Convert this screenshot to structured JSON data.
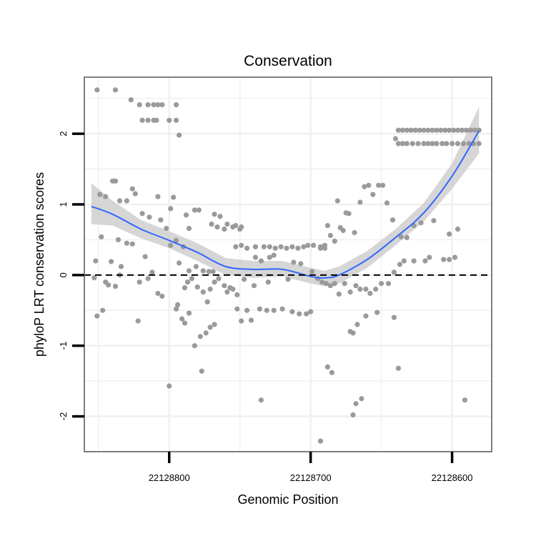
{
  "colors": {
    "background": "#ffffff",
    "plot_border": "#7f7f7f",
    "grid": "#f0f0f0",
    "points": "#9a9a9a",
    "smooth_line": "#3366ff",
    "confidence_band": "#cccccc",
    "reference_line": "#000000"
  },
  "chart_data": {
    "type": "scatter",
    "title": "Conservation",
    "xlabel": "Genomic Position",
    "ylabel": "phyloP LRT conservation scores",
    "x_reversed": true,
    "xlim": [
      22128860,
      22128572
    ],
    "ylim": [
      -2.5,
      2.8
    ],
    "x_ticks": [
      22128800,
      22128700,
      22128600
    ],
    "x_tick_labels": [
      "22128800",
      "22128700",
      "22128600"
    ],
    "y_ticks": [
      -2,
      -1,
      0,
      1,
      2
    ],
    "y_tick_labels": [
      "-2",
      "-1",
      "0",
      "1",
      "2"
    ],
    "grid": true,
    "reference_line": {
      "y": 0,
      "style": "dashed"
    },
    "points": [
      [
        22128851,
        2.62
      ],
      [
        22128838,
        2.62
      ],
      [
        22128827,
        2.48
      ],
      [
        22128821,
        2.41
      ],
      [
        22128815,
        2.41
      ],
      [
        22128811,
        2.41
      ],
      [
        22128808,
        2.41
      ],
      [
        22128805,
        2.41
      ],
      [
        22128795,
        2.41
      ],
      [
        22128819,
        2.19
      ],
      [
        22128815,
        2.19
      ],
      [
        22128811,
        2.19
      ],
      [
        22128809,
        2.19
      ],
      [
        22128800,
        2.19
      ],
      [
        22128795,
        2.19
      ],
      [
        22128793,
        1.98
      ],
      [
        22128840,
        1.33
      ],
      [
        22128838,
        1.33
      ],
      [
        22128849,
        1.14
      ],
      [
        22128845,
        1.11
      ],
      [
        22128835,
        1.05
      ],
      [
        22128830,
        1.05
      ],
      [
        22128826,
        1.22
      ],
      [
        22128824,
        1.15
      ],
      [
        22128808,
        1.11
      ],
      [
        22128799,
        0.94
      ],
      [
        22128797,
        1.1
      ],
      [
        22128788,
        0.85
      ],
      [
        22128782,
        0.92
      ],
      [
        22128779,
        0.92
      ],
      [
        22128768,
        0.86
      ],
      [
        22128764,
        0.83
      ],
      [
        22128770,
        0.72
      ],
      [
        22128766,
        0.68
      ],
      [
        22128761,
        0.65
      ],
      [
        22128759,
        0.72
      ],
      [
        22128755,
        0.68
      ],
      [
        22128753,
        0.7
      ],
      [
        22128750,
        0.65
      ],
      [
        22128749,
        0.68
      ],
      [
        22128819,
        0.87
      ],
      [
        22128814,
        0.82
      ],
      [
        22128806,
        0.78
      ],
      [
        22128802,
        0.66
      ],
      [
        22128786,
        0.66
      ],
      [
        22128848,
        0.54
      ],
      [
        22128836,
        0.5
      ],
      [
        22128830,
        0.45
      ],
      [
        22128826,
        0.44
      ],
      [
        22128799,
        0.42
      ],
      [
        22128795,
        0.49
      ],
      [
        22128790,
        0.4
      ],
      [
        22128852,
        0.2
      ],
      [
        22128841,
        0.19
      ],
      [
        22128834,
        0.12
      ],
      [
        22128817,
        0.26
      ],
      [
        22128812,
        0.04
      ],
      [
        22128793,
        0.17
      ],
      [
        22128786,
        0.06
      ],
      [
        22128781,
        0.12
      ],
      [
        22128776,
        0.06
      ],
      [
        22128772,
        0.05
      ],
      [
        22128769,
        0.05
      ],
      [
        22128853,
        -0.04
      ],
      [
        22128845,
        -0.1
      ],
      [
        22128843,
        -0.14
      ],
      [
        22128838,
        -0.16
      ],
      [
        22128835,
        0.0
      ],
      [
        22128821,
        -0.1
      ],
      [
        22128815,
        -0.05
      ],
      [
        22128808,
        -0.26
      ],
      [
        22128805,
        -0.3
      ],
      [
        22128794,
        -0.42
      ],
      [
        22128789,
        -0.18
      ],
      [
        22128787,
        -0.1
      ],
      [
        22128784,
        -0.05
      ],
      [
        22128780,
        -0.17
      ],
      [
        22128776,
        -0.24
      ],
      [
        22128773,
        -0.38
      ],
      [
        22128771,
        -0.2
      ],
      [
        22128768,
        -0.1
      ],
      [
        22128765,
        -0.05
      ],
      [
        22128761,
        -0.15
      ],
      [
        22128759,
        -0.24
      ],
      [
        22128757,
        -0.18
      ],
      [
        22128755,
        -0.2
      ],
      [
        22128752,
        -0.28
      ],
      [
        22128851,
        -0.58
      ],
      [
        22128847,
        -0.5
      ],
      [
        22128822,
        -0.65
      ],
      [
        22128795,
        -0.48
      ],
      [
        22128791,
        -0.62
      ],
      [
        22128789,
        -0.68
      ],
      [
        22128786,
        -0.54
      ],
      [
        22128782,
        -1.0
      ],
      [
        22128778,
        -0.87
      ],
      [
        22128774,
        -0.82
      ],
      [
        22128771,
        -0.74
      ],
      [
        22128768,
        -0.7
      ],
      [
        22128777,
        -1.36
      ],
      [
        22128800,
        -1.57
      ],
      [
        22128753,
        0.4
      ],
      [
        22128749,
        0.42
      ],
      [
        22128745,
        0.38
      ],
      [
        22128739,
        0.4
      ],
      [
        22128733,
        0.4
      ],
      [
        22128729,
        0.4
      ],
      [
        22128725,
        0.38
      ],
      [
        22128721,
        0.4
      ],
      [
        22128717,
        0.38
      ],
      [
        22128713,
        0.4
      ],
      [
        22128709,
        0.38
      ],
      [
        22128705,
        0.4
      ],
      [
        22128702,
        0.42
      ],
      [
        22128698,
        0.42
      ],
      [
        22128693,
        0.38
      ],
      [
        22128690,
        0.42
      ],
      [
        22128739,
        0.25
      ],
      [
        22128735,
        0.2
      ],
      [
        22128729,
        0.25
      ],
      [
        22128726,
        0.28
      ],
      [
        22128712,
        0.18
      ],
      [
        22128707,
        0.16
      ],
      [
        22128699,
        0.05
      ],
      [
        22128747,
        -0.06
      ],
      [
        22128740,
        -0.15
      ],
      [
        22128730,
        -0.1
      ],
      [
        22128716,
        -0.06
      ],
      [
        22128695,
        -0.05
      ],
      [
        22128752,
        -0.48
      ],
      [
        22128749,
        -0.65
      ],
      [
        22128745,
        -0.5
      ],
      [
        22128742,
        -0.64
      ],
      [
        22128736,
        -0.48
      ],
      [
        22128731,
        -0.5
      ],
      [
        22128726,
        -0.5
      ],
      [
        22128720,
        -0.48
      ],
      [
        22128713,
        -0.52
      ],
      [
        22128708,
        -0.55
      ],
      [
        22128703,
        -0.55
      ],
      [
        22128700,
        -0.52
      ],
      [
        22128735,
        -1.77
      ],
      [
        22128690,
        0.38
      ],
      [
        22128688,
        0.7
      ],
      [
        22128686,
        0.56
      ],
      [
        22128683,
        0.48
      ],
      [
        22128681,
        1.05
      ],
      [
        22128679,
        0.67
      ],
      [
        22128677,
        0.63
      ],
      [
        22128675,
        0.88
      ],
      [
        22128673,
        0.87
      ],
      [
        22128669,
        0.6
      ],
      [
        22128665,
        1.03
      ],
      [
        22128662,
        1.25
      ],
      [
        22128659,
        1.27
      ],
      [
        22128656,
        1.14
      ],
      [
        22128652,
        1.27
      ],
      [
        22128649,
        1.27
      ],
      [
        22128646,
        1.02
      ],
      [
        22128642,
        0.78
      ],
      [
        22128636,
        0.54
      ],
      [
        22128632,
        0.53
      ],
      [
        22128627,
        0.7
      ],
      [
        22128622,
        0.74
      ],
      [
        22128613,
        0.77
      ],
      [
        22128602,
        0.58
      ],
      [
        22128596,
        0.65
      ],
      [
        22128689,
        -0.12
      ],
      [
        22128686,
        -0.15
      ],
      [
        22128683,
        -0.12
      ],
      [
        22128680,
        -0.27
      ],
      [
        22128676,
        -0.12
      ],
      [
        22128672,
        -0.24
      ],
      [
        22128668,
        -0.15
      ],
      [
        22128665,
        -0.2
      ],
      [
        22128661,
        -0.2
      ],
      [
        22128658,
        -0.26
      ],
      [
        22128654,
        -0.2
      ],
      [
        22128650,
        -0.12
      ],
      [
        22128645,
        -0.12
      ],
      [
        22128641,
        0.04
      ],
      [
        22128637,
        0.15
      ],
      [
        22128634,
        0.2
      ],
      [
        22128627,
        0.2
      ],
      [
        22128619,
        0.2
      ],
      [
        22128616,
        0.25
      ],
      [
        22128606,
        0.22
      ],
      [
        22128602,
        0.22
      ],
      [
        22128598,
        0.25
      ],
      [
        22128672,
        -0.8
      ],
      [
        22128670,
        -0.82
      ],
      [
        22128667,
        -0.7
      ],
      [
        22128661,
        -0.58
      ],
      [
        22128653,
        -0.53
      ],
      [
        22128641,
        -0.6
      ],
      [
        22128688,
        -1.3
      ],
      [
        22128685,
        -1.38
      ],
      [
        22128670,
        -1.98
      ],
      [
        22128668,
        -1.82
      ],
      [
        22128664,
        -1.75
      ],
      [
        22128638,
        -1.32
      ],
      [
        22128591,
        -1.77
      ],
      [
        22128693,
        -2.35
      ],
      [
        22128693,
        0.4
      ],
      [
        22128692,
        -0.1
      ],
      [
        22128640,
        1.93
      ],
      [
        22128638,
        2.05
      ],
      [
        22128635,
        2.05
      ],
      [
        22128632,
        2.05
      ],
      [
        22128629,
        2.05
      ],
      [
        22128626,
        2.05
      ],
      [
        22128623,
        2.05
      ],
      [
        22128620,
        2.05
      ],
      [
        22128617,
        2.05
      ],
      [
        22128614,
        2.05
      ],
      [
        22128611,
        2.05
      ],
      [
        22128608,
        2.05
      ],
      [
        22128605,
        2.05
      ],
      [
        22128602,
        2.05
      ],
      [
        22128599,
        2.05
      ],
      [
        22128596,
        2.05
      ],
      [
        22128593,
        2.05
      ],
      [
        22128590,
        2.05
      ],
      [
        22128587,
        2.05
      ],
      [
        22128584,
        2.05
      ],
      [
        22128581,
        2.05
      ],
      [
        22128638,
        1.86
      ],
      [
        22128635,
        1.86
      ],
      [
        22128632,
        1.86
      ],
      [
        22128628,
        1.86
      ],
      [
        22128624,
        1.86
      ],
      [
        22128620,
        1.86
      ],
      [
        22128617,
        1.86
      ],
      [
        22128614,
        1.86
      ],
      [
        22128611,
        1.86
      ],
      [
        22128607,
        1.86
      ],
      [
        22128604,
        1.86
      ],
      [
        22128600,
        1.86
      ],
      [
        22128596,
        1.86
      ],
      [
        22128592,
        1.86
      ],
      [
        22128588,
        1.86
      ],
      [
        22128585,
        1.86
      ],
      [
        22128581,
        1.86
      ]
    ],
    "smooth": {
      "x": [
        22128855,
        22128840,
        22128820,
        22128800,
        22128780,
        22128760,
        22128740,
        22128720,
        22128700,
        22128690,
        22128680,
        22128660,
        22128640,
        22128620,
        22128600,
        22128581
      ],
      "y": [
        0.97,
        0.86,
        0.65,
        0.49,
        0.32,
        0.12,
        0.08,
        0.08,
        -0.02,
        -0.04,
        0.0,
        0.22,
        0.53,
        0.88,
        1.4,
        2.04
      ],
      "lower": [
        0.72,
        0.7,
        0.52,
        0.38,
        0.2,
        0.0,
        -0.04,
        -0.02,
        -0.12,
        -0.16,
        -0.12,
        0.1,
        0.42,
        0.76,
        1.22,
        1.72
      ],
      "upper": [
        1.3,
        1.05,
        0.78,
        0.62,
        0.45,
        0.24,
        0.2,
        0.2,
        0.1,
        0.06,
        0.12,
        0.34,
        0.65,
        1.02,
        1.58,
        2.38
      ]
    }
  }
}
